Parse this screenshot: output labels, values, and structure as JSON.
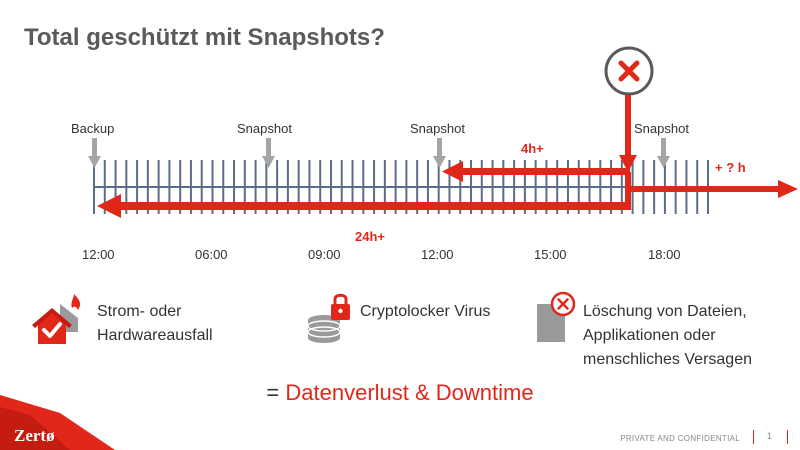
{
  "title": "Total geschützt mit Snapshots?",
  "markers": {
    "backup": "Backup",
    "snapshot1": "Snapshot",
    "snapshot2": "Snapshot",
    "snapshot3": "Snapshot"
  },
  "arrows": {
    "loss_4h": "4h+",
    "loss_24h": "24h+",
    "plus_h": "+ ? h"
  },
  "times": [
    "12:00",
    "06:00",
    "09:00",
    "12:00",
    "15:00",
    "18:00"
  ],
  "causes": [
    {
      "icon": "house-fire-icon",
      "lines": [
        "Strom- oder",
        "Hardwareausfall"
      ]
    },
    {
      "icon": "database-lock-icon",
      "lines": [
        "Cryptolocker Virus"
      ]
    },
    {
      "icon": "file-delete-icon",
      "lines": [
        "Löschung von Dateien,",
        "Applikationen oder",
        "menschliches Versagen"
      ]
    }
  ],
  "result": {
    "prefix": "= ",
    "emphasis": "Datenverlust & Downtime"
  },
  "footer": {
    "confidential": "PRIVATE AND CONFIDENTIAL",
    "page": "1"
  },
  "logo": "Zertø",
  "colors": {
    "accent": "#e0271a",
    "timeline": "#5b6e85",
    "marker": "#a5a5a5",
    "title": "#5a5a5a"
  }
}
